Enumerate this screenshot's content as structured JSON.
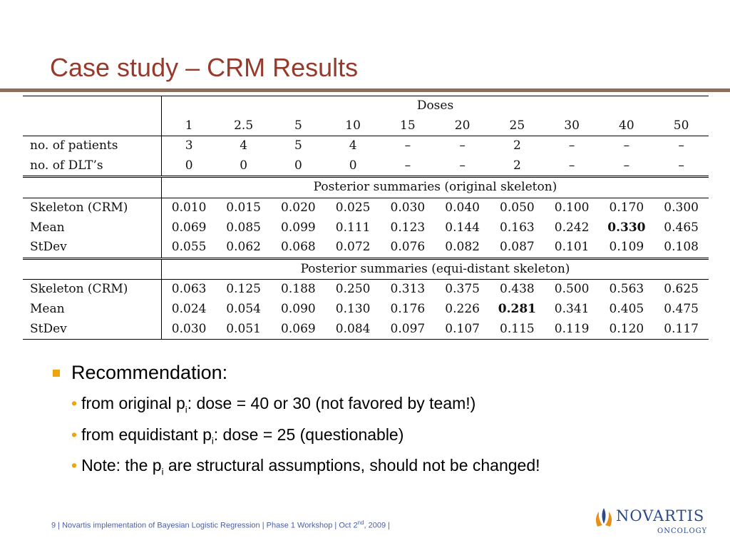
{
  "slide": {
    "title": "Case study – CRM Results"
  },
  "table": {
    "doses_header": "Doses",
    "doses": [
      "1",
      "2.5",
      "5",
      "10",
      "15",
      "20",
      "25",
      "30",
      "40",
      "50"
    ],
    "patients_label": "no.  of patients",
    "patients": [
      "3",
      "4",
      "5",
      "4",
      "–",
      "–",
      "2",
      "–",
      "–",
      "–"
    ],
    "dlt_label": "no.  of DLT’s",
    "dlt": [
      "0",
      "0",
      "0",
      "0",
      "–",
      "–",
      "2",
      "–",
      "–",
      "–"
    ],
    "sections": [
      {
        "header": "Posterior summaries (original skeleton)",
        "rows": [
          {
            "label": "Skeleton (CRM)",
            "values": [
              "0.010",
              "0.015",
              "0.020",
              "0.025",
              "0.030",
              "0.040",
              "0.050",
              "0.100",
              "0.170",
              "0.300"
            ]
          },
          {
            "label": "Mean",
            "values": [
              "0.069",
              "0.085",
              "0.099",
              "0.111",
              "0.123",
              "0.144",
              "0.163",
              "0.242",
              "0.330",
              "0.465"
            ],
            "bold_index": 8
          },
          {
            "label": "StDev",
            "values": [
              "0.055",
              "0.062",
              "0.068",
              "0.072",
              "0.076",
              "0.082",
              "0.087",
              "0.101",
              "0.109",
              "0.108"
            ]
          }
        ]
      },
      {
        "header": "Posterior summaries (equi-distant skeleton)",
        "rows": [
          {
            "label": "Skeleton (CRM)",
            "values": [
              "0.063",
              "0.125",
              "0.188",
              "0.250",
              "0.313",
              "0.375",
              "0.438",
              "0.500",
              "0.563",
              "0.625"
            ]
          },
          {
            "label": "Mean",
            "values": [
              "0.024",
              "0.054",
              "0.090",
              "0.130",
              "0.176",
              "0.226",
              "0.281",
              "0.341",
              "0.405",
              "0.475"
            ],
            "bold_index": 6
          },
          {
            "label": "StDev",
            "values": [
              "0.030",
              "0.051",
              "0.069",
              "0.084",
              "0.097",
              "0.107",
              "0.115",
              "0.119",
              "0.120",
              "0.117"
            ]
          }
        ]
      }
    ]
  },
  "bullets": {
    "heading": "Recommendation:",
    "items": [
      {
        "pre": "from original p",
        "sub": "i",
        "post": ": dose = 40 or 30 (not favored by team!)"
      },
      {
        "pre": "from equidistant p",
        "sub": "i",
        "post": ": dose = 25 (questionable)"
      },
      {
        "pre": "Note: the p",
        "sub": "i",
        "post": " are structural assumptions, should not be changed!"
      }
    ]
  },
  "footer": {
    "pre": "9 | Novartis implementation of Bayesian Logistic Regression | Phase 1 Workshop | Oct 2",
    "sup": "nd",
    "post": ", 2009 |"
  },
  "logo": {
    "word": "NOVARTIS",
    "sub": "ONCOLOGY",
    "color": "#2a4a8c",
    "accent": "#e8901a"
  },
  "colors": {
    "title": "#963a2c",
    "rule": "#8b6e5c",
    "bullet": "#f0a30a",
    "footer": "#4b5fa6"
  }
}
